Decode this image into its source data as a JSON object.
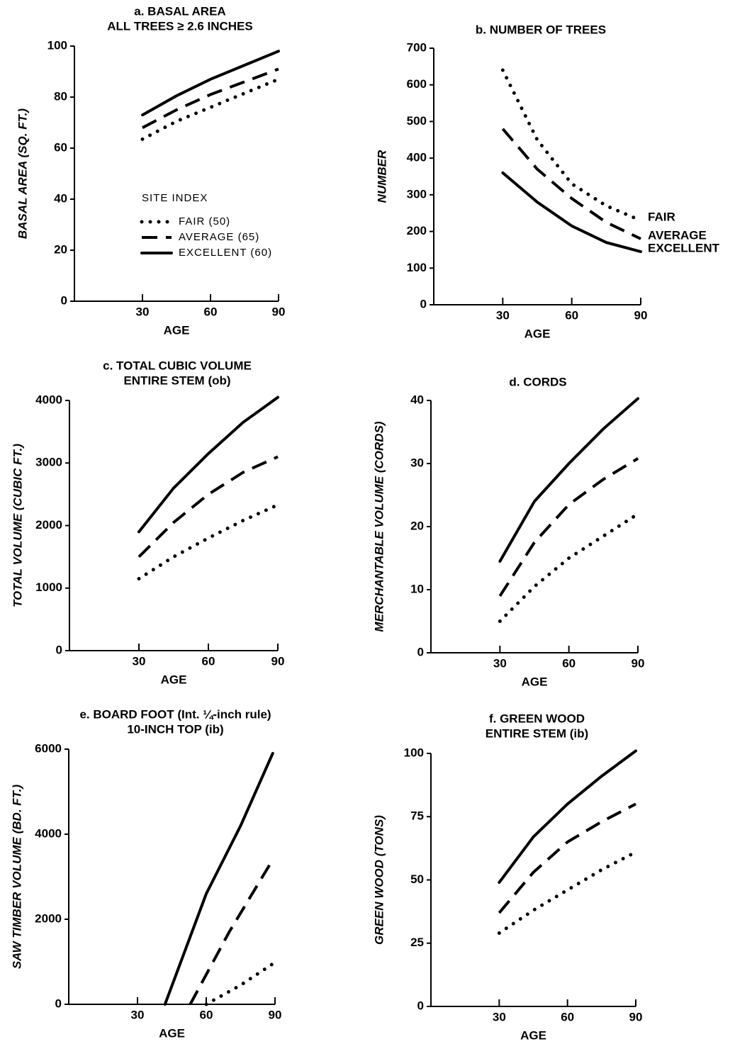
{
  "chart_data": [
    {
      "type": "line",
      "title": "a. BASAL AREA",
      "subtitle": "ALL TREES ≥ 2.6 INCHES",
      "x_label": "AGE",
      "y_label": "BASAL AREA (SQ. FT.)",
      "x": [
        30,
        45,
        60,
        75,
        90
      ],
      "xlim": [
        0,
        90
      ],
      "xticks": [
        30,
        60,
        90
      ],
      "ylim": [
        0,
        100
      ],
      "yticks": [
        0,
        20,
        40,
        60,
        80,
        100
      ],
      "legend": "lower-left",
      "legend_title": "SITE INDEX",
      "series": [
        {
          "name": "FAIR (50)",
          "style": "dotted",
          "color": "#000000",
          "values": [
            63.5,
            70.5,
            76,
            81.5,
            87
          ]
        },
        {
          "name": "AVERAGE (65)",
          "style": "dashed",
          "color": "#000000",
          "values": [
            68,
            75,
            81,
            86,
            91
          ]
        },
        {
          "name": "EXCELLENT (60)",
          "style": "solid",
          "color": "#000000",
          "values": [
            73,
            80.5,
            87,
            92.5,
            98
          ]
        }
      ]
    },
    {
      "type": "line",
      "title": "b. NUMBER OF TREES",
      "x_label": "AGE",
      "y_label": "NUMBER",
      "x": [
        30,
        45,
        60,
        75,
        90
      ],
      "xlim": [
        0,
        90
      ],
      "xticks": [
        30,
        60,
        90
      ],
      "ylim": [
        0,
        700
      ],
      "yticks": [
        0,
        100,
        200,
        300,
        400,
        500,
        600,
        700
      ],
      "legend": "line-end",
      "series": [
        {
          "name": "FAIR",
          "style": "dotted",
          "color": "#000000",
          "values": [
            640,
            450,
            330,
            270,
            230
          ]
        },
        {
          "name": "AVERAGE",
          "style": "dashed",
          "color": "#000000",
          "values": [
            480,
            370,
            290,
            225,
            180
          ]
        },
        {
          "name": "EXCELLENT",
          "style": "solid",
          "color": "#000000",
          "values": [
            360,
            280,
            215,
            170,
            145
          ]
        }
      ]
    },
    {
      "type": "line",
      "title": "c. TOTAL CUBIC VOLUME",
      "subtitle": "ENTIRE STEM (ob)",
      "x_label": "AGE",
      "y_label": "TOTAL VOLUME (CUBIC FT.)",
      "x": [
        30,
        45,
        60,
        75,
        90
      ],
      "xlim": [
        0,
        90
      ],
      "xticks": [
        30,
        60,
        90
      ],
      "ylim": [
        0,
        4000
      ],
      "yticks": [
        0,
        1000,
        2000,
        3000,
        4000
      ],
      "series": [
        {
          "style": "dotted",
          "color": "#000000",
          "values": [
            1150,
            1500,
            1800,
            2080,
            2330
          ]
        },
        {
          "style": "dashed",
          "color": "#000000",
          "values": [
            1500,
            2050,
            2500,
            2850,
            3100
          ]
        },
        {
          "style": "solid",
          "color": "#000000",
          "values": [
            1900,
            2600,
            3150,
            3650,
            4050
          ]
        }
      ]
    },
    {
      "type": "line",
      "title": "d. CORDS",
      "x_label": "AGE",
      "y_label": "MERCHANTABLE VOLUME (CORDS)",
      "x": [
        30,
        45,
        60,
        75,
        90
      ],
      "xlim": [
        0,
        90
      ],
      "xticks": [
        30,
        60,
        90
      ],
      "ylim": [
        0,
        40
      ],
      "yticks": [
        0,
        10,
        20,
        30,
        40
      ],
      "series": [
        {
          "style": "dotted",
          "color": "#000000",
          "values": [
            5,
            10.5,
            15,
            18.5,
            22
          ]
        },
        {
          "style": "dashed",
          "color": "#000000",
          "values": [
            9,
            17.5,
            23.5,
            27.5,
            30.8
          ]
        },
        {
          "style": "solid",
          "color": "#000000",
          "values": [
            14.5,
            24,
            30,
            35.5,
            40.3
          ]
        }
      ]
    },
    {
      "type": "line",
      "title": "e. BOARD FOOT (Int. ¼-inch rule)",
      "subtitle": "10-INCH TOP (ib)",
      "x_label": "AGE",
      "y_label": "SAW TIMBER VOLUME (BD. FT.)",
      "xlim": [
        0,
        90
      ],
      "xticks": [
        30,
        60,
        90
      ],
      "ylim": [
        0,
        6000
      ],
      "yticks": [
        0,
        2000,
        4000,
        6000
      ],
      "series": [
        {
          "style": "dotted",
          "color": "#000000",
          "x": [
            60,
            75,
            89
          ],
          "values": [
            0,
            450,
            950
          ]
        },
        {
          "style": "dashed",
          "color": "#000000",
          "x": [
            53,
            70,
            89
          ],
          "values": [
            0,
            1700,
            3400
          ]
        },
        {
          "style": "solid",
          "color": "#000000",
          "x": [
            42,
            60,
            75,
            89
          ],
          "values": [
            0,
            2600,
            4200,
            5900
          ]
        }
      ]
    },
    {
      "type": "line",
      "title": "f. GREEN WOOD",
      "subtitle": "ENTIRE STEM (ib)",
      "x_label": "AGE",
      "y_label": "GREEN WOOD (TONS)",
      "x": [
        30,
        45,
        60,
        75,
        90
      ],
      "xlim": [
        0,
        90
      ],
      "xticks": [
        30,
        60,
        90
      ],
      "ylim": [
        0,
        100
      ],
      "yticks": [
        0,
        25,
        50,
        75,
        100
      ],
      "series": [
        {
          "style": "dotted",
          "color": "#000000",
          "values": [
            29,
            38,
            46,
            54,
            61
          ]
        },
        {
          "style": "dashed",
          "color": "#000000",
          "values": [
            37,
            53,
            65,
            73,
            80
          ]
        },
        {
          "style": "solid",
          "color": "#000000",
          "values": [
            49,
            67,
            80,
            91,
            101
          ]
        }
      ]
    }
  ]
}
